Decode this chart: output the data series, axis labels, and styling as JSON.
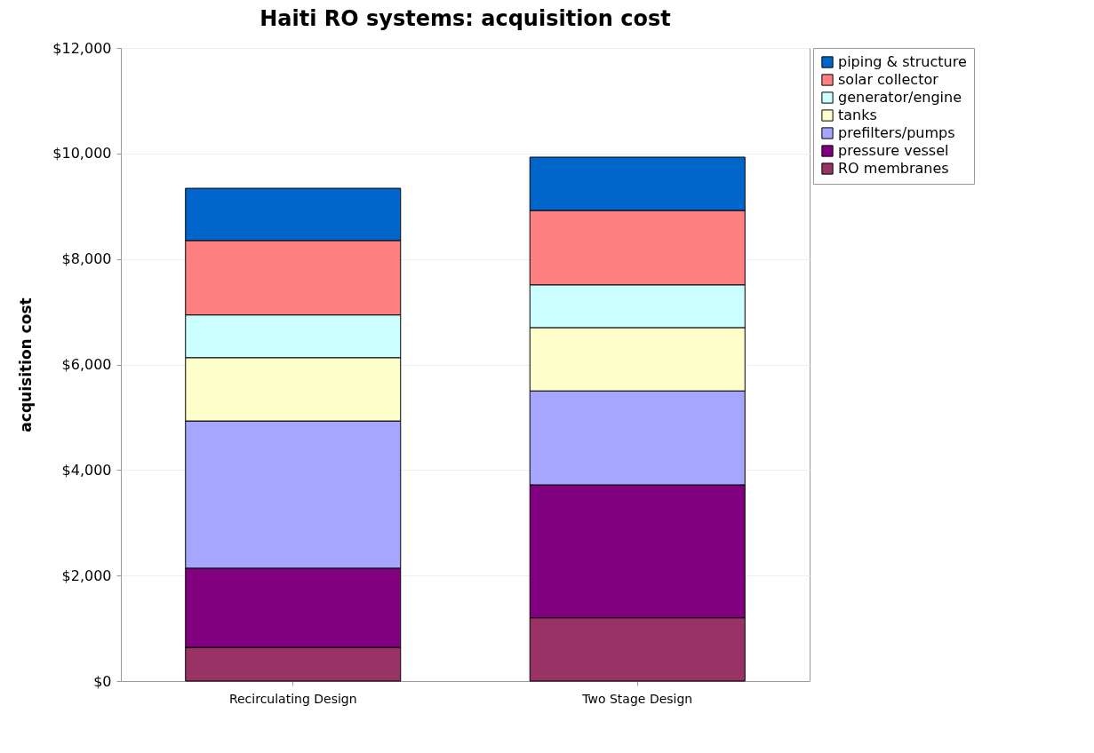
{
  "chart_data": {
    "type": "bar",
    "stacked": true,
    "title": "Haiti RO systems: acquisition cost",
    "ylabel": "acquisition cost",
    "categories": [
      "Recirculating Design",
      "Two Stage Design"
    ],
    "series": [
      {
        "name": "RO membranes",
        "color": "#993366",
        "values": [
          640,
          1200
        ]
      },
      {
        "name": "pressure vessel",
        "color": "#800080",
        "values": [
          1500,
          2520
        ]
      },
      {
        "name": "prefilters/pumps",
        "color": "#a6a6ff",
        "values": [
          2790,
          1780
        ]
      },
      {
        "name": "tanks",
        "color": "#ffffcc",
        "values": [
          1200,
          1200
        ]
      },
      {
        "name": "generator/engine",
        "color": "#ccffff",
        "values": [
          810,
          810
        ]
      },
      {
        "name": "solar collector",
        "color": "#ff8080",
        "values": [
          1410,
          1410
        ]
      },
      {
        "name": "piping & structure",
        "color": "#0066cc",
        "values": [
          990,
          1010
        ]
      }
    ],
    "ylim": [
      0,
      12000
    ],
    "yticks": [
      {
        "value": 0,
        "label": "$0"
      },
      {
        "value": 2000,
        "label": "$2,000"
      },
      {
        "value": 4000,
        "label": "$4,000"
      },
      {
        "value": 6000,
        "label": "$6,000"
      },
      {
        "value": 8000,
        "label": "$8,000"
      },
      {
        "value": 10000,
        "label": "$10,000"
      },
      {
        "value": 12000,
        "label": "$12,000"
      }
    ],
    "grid": "y",
    "legend": "top right"
  }
}
